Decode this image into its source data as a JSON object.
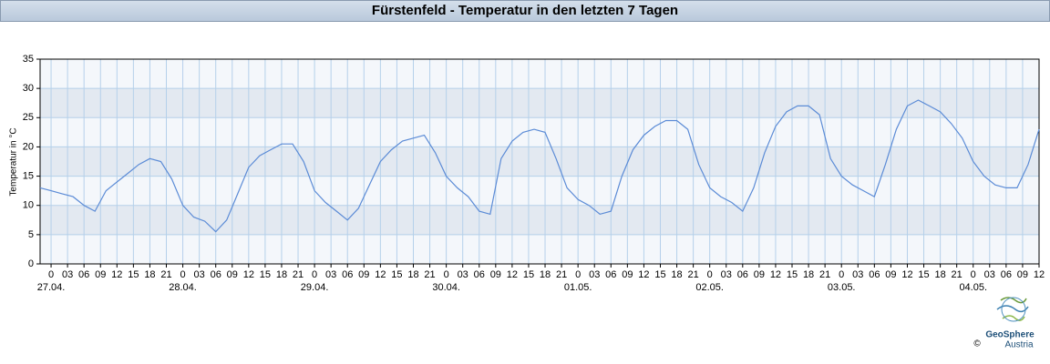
{
  "chart_data": {
    "type": "line",
    "title": "Fürstenfeld - Temperatur in den letzten 7 Tagen",
    "y_label": "Temperatur in °C",
    "color": "#5b8bd6",
    "grid": true,
    "xlim": [
      -2,
      180
    ],
    "ylim": [
      0,
      35
    ],
    "yticks": [
      0,
      5,
      10,
      15,
      20,
      25,
      30,
      35
    ],
    "xticks": [
      0,
      {
        "value": 3,
        "label": "03"
      },
      {
        "value": 6,
        "label": "06"
      },
      {
        "value": 9,
        "label": "09"
      },
      12,
      15,
      18,
      21,
      {
        "value": 24,
        "label": "0"
      },
      {
        "value": 27,
        "label": "03"
      },
      {
        "value": 30,
        "label": "06"
      },
      {
        "value": 33,
        "label": "09"
      },
      {
        "value": 36,
        "label": "12"
      },
      {
        "value": 39,
        "label": "15"
      },
      {
        "value": 42,
        "label": "18"
      },
      {
        "value": 45,
        "label": "21"
      },
      {
        "value": 48,
        "label": "0"
      },
      {
        "value": 51,
        "label": "03"
      },
      {
        "value": 54,
        "label": "06"
      },
      {
        "value": 57,
        "label": "09"
      },
      {
        "value": 60,
        "label": "12"
      },
      {
        "value": 63,
        "label": "15"
      },
      {
        "value": 66,
        "label": "18"
      },
      {
        "value": 69,
        "label": "21"
      },
      {
        "value": 72,
        "label": "0"
      },
      {
        "value": 75,
        "label": "03"
      },
      {
        "value": 78,
        "label": "06"
      },
      {
        "value": 81,
        "label": "09"
      },
      {
        "value": 84,
        "label": "12"
      },
      {
        "value": 87,
        "label": "15"
      },
      {
        "value": 90,
        "label": "18"
      },
      {
        "value": 93,
        "label": "21"
      },
      {
        "value": 96,
        "label": "0"
      },
      {
        "value": 99,
        "label": "03"
      },
      {
        "value": 102,
        "label": "06"
      },
      {
        "value": 105,
        "label": "09"
      },
      {
        "value": 108,
        "label": "12"
      },
      {
        "value": 111,
        "label": "15"
      },
      {
        "value": 114,
        "label": "18"
      },
      {
        "value": 117,
        "label": "21"
      },
      {
        "value": 120,
        "label": "0"
      },
      {
        "value": 123,
        "label": "03"
      },
      {
        "value": 126,
        "label": "06"
      },
      {
        "value": 129,
        "label": "09"
      },
      {
        "value": 132,
        "label": "12"
      },
      {
        "value": 135,
        "label": "15"
      },
      {
        "value": 138,
        "label": "18"
      },
      {
        "value": 141,
        "label": "21"
      },
      {
        "value": 144,
        "label": "0"
      },
      {
        "value": 147,
        "label": "03"
      },
      {
        "value": 150,
        "label": "06"
      },
      {
        "value": 153,
        "label": "09"
      },
      {
        "value": 156,
        "label": "12"
      },
      {
        "value": 159,
        "label": "15"
      },
      {
        "value": 162,
        "label": "18"
      },
      {
        "value": 165,
        "label": "21"
      },
      {
        "value": 168,
        "label": "0"
      },
      {
        "value": 171,
        "label": "03"
      },
      {
        "value": 174,
        "label": "06"
      },
      {
        "value": 177,
        "label": "09"
      },
      {
        "value": 180,
        "label": "12"
      }
    ],
    "date_labels": [
      {
        "value": 0,
        "label": "27.04."
      },
      {
        "value": 24,
        "label": "28.04."
      },
      {
        "value": 48,
        "label": "29.04."
      },
      {
        "value": 72,
        "label": "30.04."
      },
      {
        "value": 96,
        "label": "01.05."
      },
      {
        "value": 120,
        "label": "02.05."
      },
      {
        "value": 144,
        "label": "03.05."
      },
      {
        "value": 168,
        "label": "04.05."
      }
    ],
    "x": [
      -2,
      0,
      2,
      4,
      6,
      8,
      10,
      12,
      14,
      16,
      18,
      20,
      22,
      24,
      26,
      28,
      30,
      32,
      34,
      36,
      38,
      40,
      42,
      44,
      46,
      48,
      50,
      52,
      54,
      56,
      58,
      60,
      62,
      64,
      66,
      68,
      70,
      72,
      74,
      76,
      78,
      80,
      82,
      84,
      86,
      88,
      90,
      92,
      94,
      96,
      98,
      100,
      102,
      104,
      106,
      108,
      110,
      112,
      114,
      116,
      118,
      120,
      122,
      124,
      126,
      128,
      130,
      132,
      134,
      136,
      138,
      140,
      142,
      144,
      146,
      148,
      150,
      152,
      154,
      156,
      158,
      160,
      162,
      164,
      166,
      168,
      170,
      172,
      174,
      176,
      178,
      180
    ],
    "values": [
      13,
      12.5,
      12,
      11.5,
      10,
      9,
      12.5,
      14,
      15.5,
      17,
      18,
      17.5,
      14.5,
      10,
      8,
      7.3,
      5.5,
      7.5,
      12,
      16.5,
      18.5,
      19.5,
      20.5,
      20.5,
      17.5,
      12.5,
      10.5,
      9,
      7.5,
      9.5,
      13.5,
      17.5,
      19.5,
      21,
      21.5,
      22,
      19,
      15,
      13,
      11.5,
      9,
      8.5,
      18,
      21,
      22.5,
      23,
      22.5,
      18,
      13,
      11,
      10,
      8.5,
      9,
      15,
      19.5,
      22,
      23.5,
      24.5,
      24.5,
      23,
      17,
      13,
      11.5,
      10.5,
      9,
      13,
      19,
      23.5,
      26,
      27,
      27,
      25.5,
      18,
      15,
      13.5,
      12.5,
      11.5,
      17,
      23,
      27,
      28,
      27,
      26,
      24,
      21.5,
      17.5,
      15,
      13.5,
      13,
      13,
      17,
      23
    ]
  },
  "branding": {
    "name": "GeoSphere",
    "sub": "Austria",
    "copyright": "©"
  }
}
